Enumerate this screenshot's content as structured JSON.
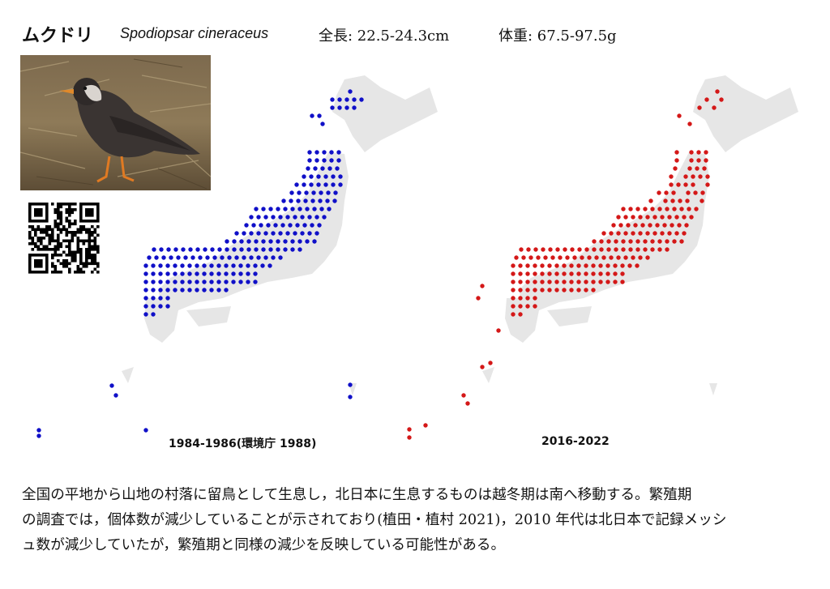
{
  "header": {
    "name_jp": "ムクドリ",
    "name_sci": "Spodiopsar cineraceus",
    "length": "全長: 22.5-24.3cm",
    "weight": "体重: 67.5-97.5g"
  },
  "maps": {
    "left_caption": "1984-1986(環境庁 1988)",
    "right_caption": "2016-2022",
    "left_color": "#1010c8",
    "right_color": "#d41818",
    "land_color": "#e6e6e6"
  },
  "description": {
    "line1": "全国の平地から山地の村落に留鳥として生息し，北日本に生息するものは越冬期は南へ移動する。繁殖期",
    "line2": "の調査では，個体数が減少していることが示されており(植田・植村 2021)，2010 年代は北日本で記録メッシ",
    "line3": "ュ数が減少していたが，繁殖期と同様の減少を反映している可能性がある。"
  }
}
